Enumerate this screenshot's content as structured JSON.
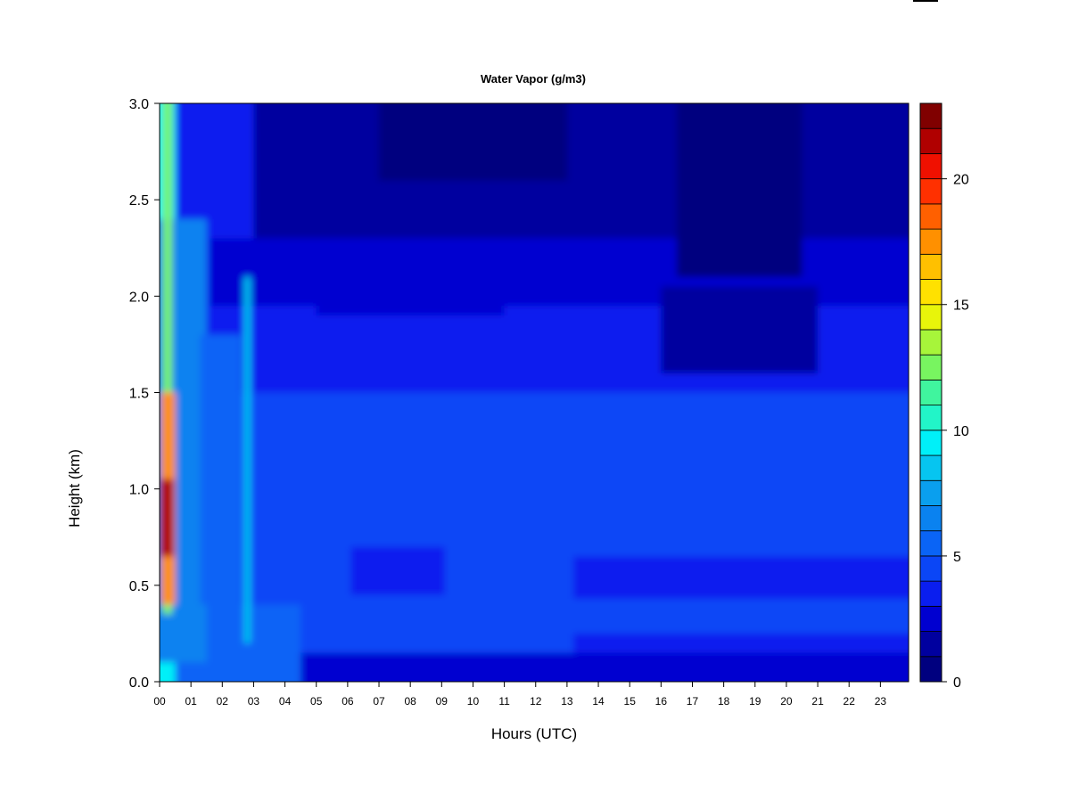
{
  "chart_data": {
    "type": "heatmap",
    "title": "Water Vapor (g/m3)",
    "xlabel": "Hours (UTC)",
    "ylabel": "Height (km)",
    "x_ticks": [
      "00",
      "01",
      "02",
      "03",
      "04",
      "05",
      "06",
      "07",
      "08",
      "09",
      "10",
      "11",
      "12",
      "13",
      "14",
      "15",
      "16",
      "17",
      "18",
      "19",
      "20",
      "21",
      "22",
      "23"
    ],
    "xlim": [
      0,
      23.9
    ],
    "y_ticks": [
      "0.0",
      "0.5",
      "1.0",
      "1.5",
      "2.0",
      "2.5",
      "3.0"
    ],
    "ylim": [
      0,
      3.0
    ],
    "colorbar": {
      "min": 0,
      "max": 22,
      "step": 1,
      "tick_labels": [
        "0",
        "5",
        "10",
        "15",
        "20"
      ],
      "tick_values": [
        0,
        5,
        10,
        15,
        20
      ],
      "colors": [
        "#00007F",
        "#00009F",
        "#0000D0",
        "#0A1EEF",
        "#0B46F6",
        "#0A64F6",
        "#0A82F0",
        "#0A9FEE",
        "#06C5F0",
        "#00F0F8",
        "#22F5C8",
        "#40F59E",
        "#78F560",
        "#A7F53A",
        "#E8F50A",
        "#FFE100",
        "#FFC000",
        "#FF9000",
        "#FF6000",
        "#FF3000",
        "#F01000",
        "#B00000",
        "#800000"
      ]
    },
    "legend": "right",
    "grid": false
  }
}
